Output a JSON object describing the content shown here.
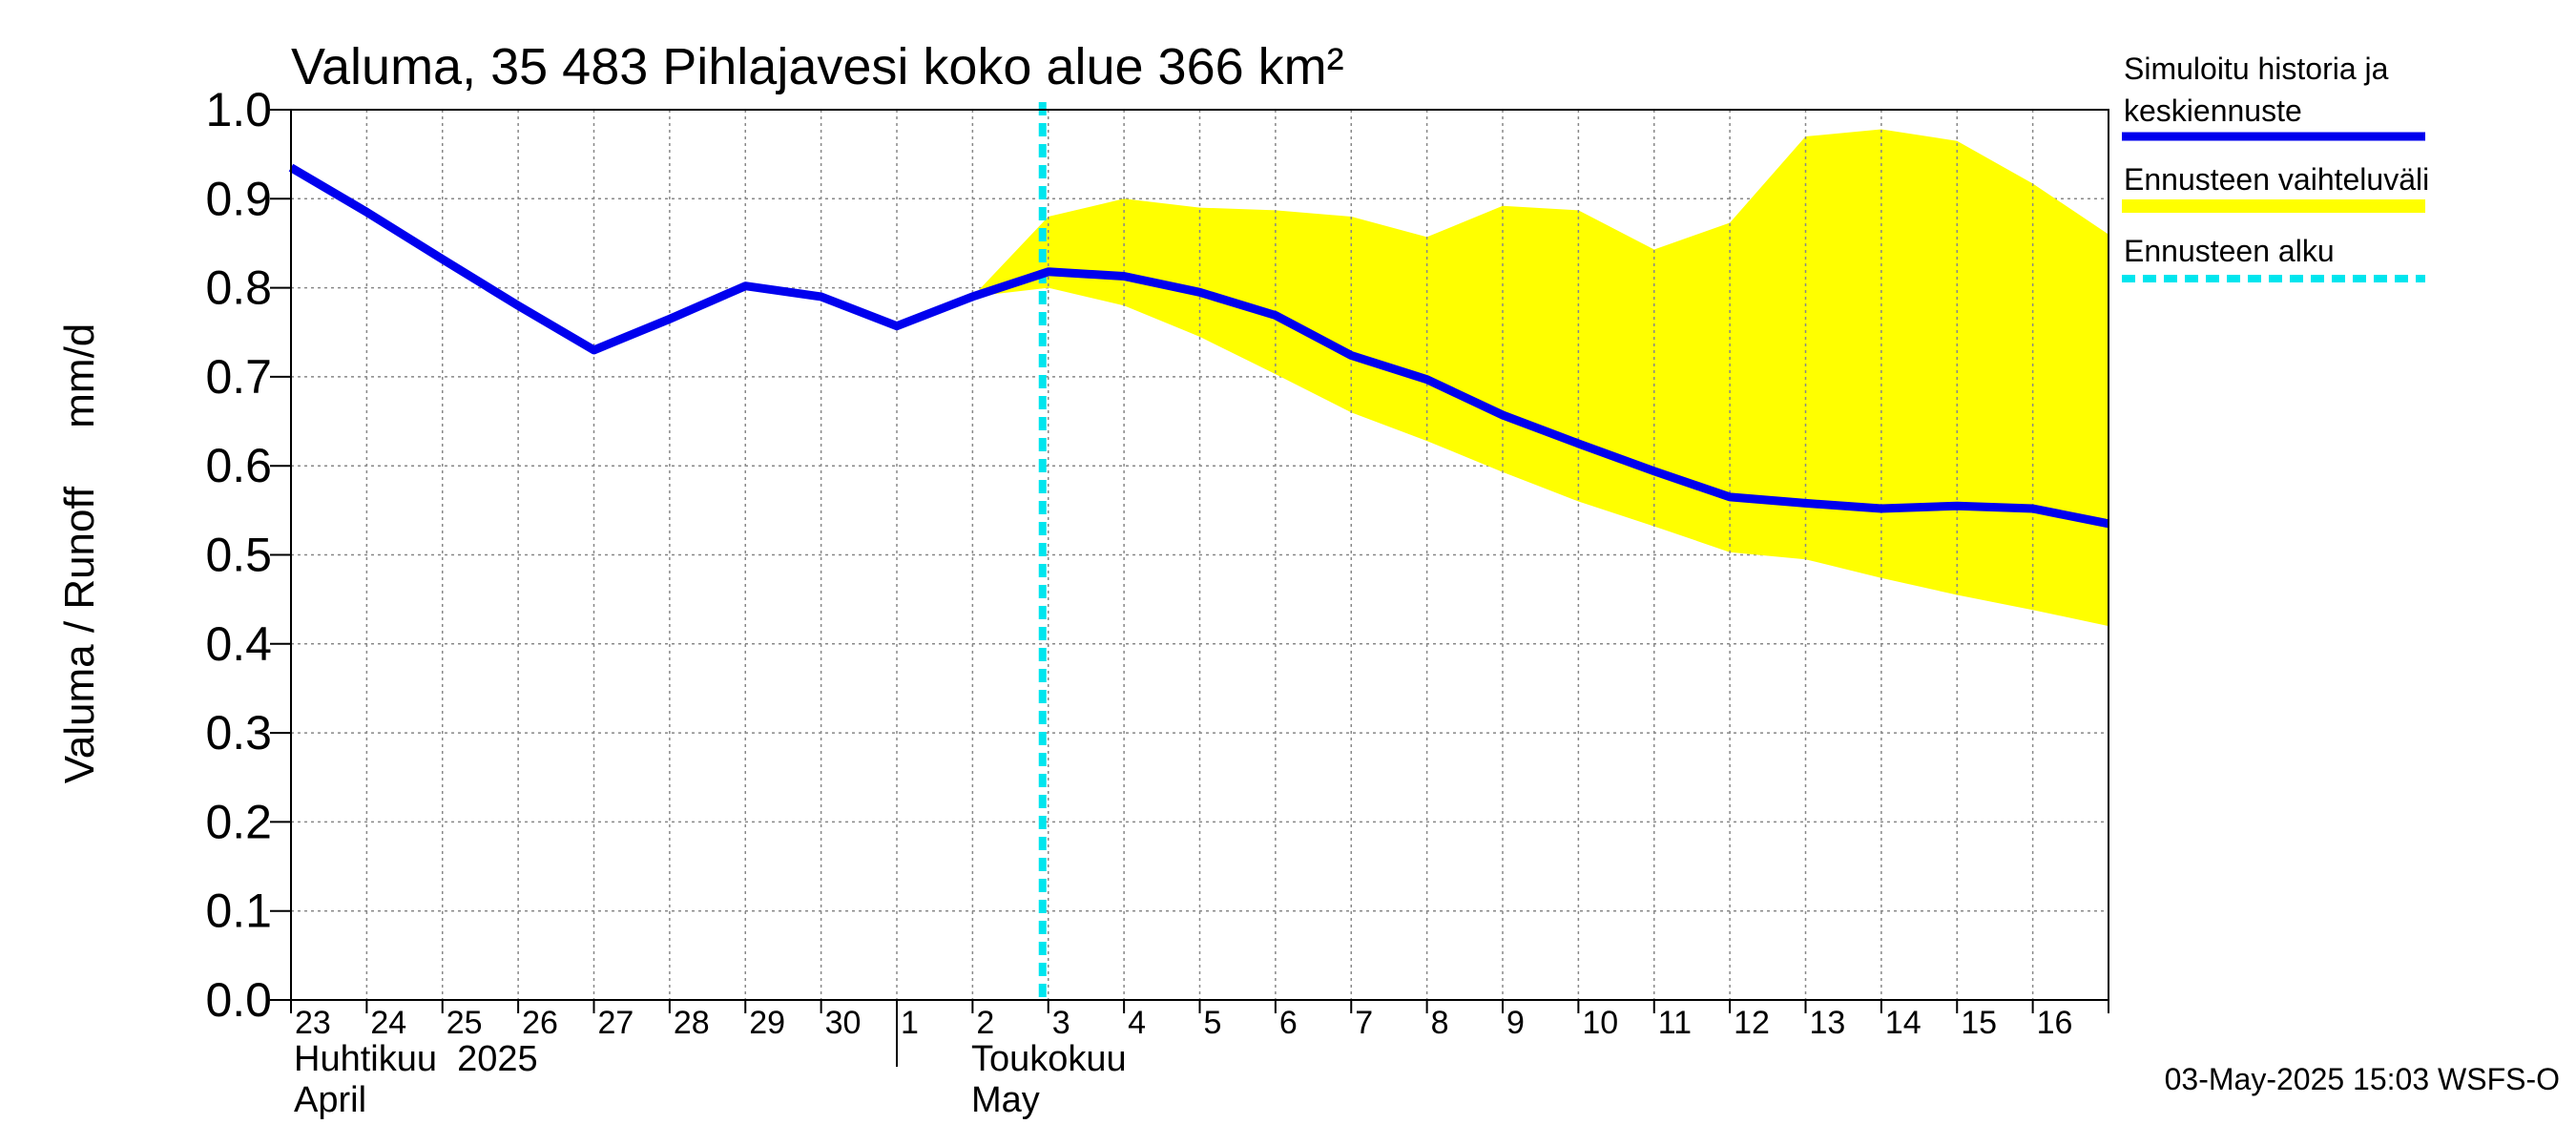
{
  "chart_data": {
    "type": "line",
    "title": "Valuma, 35 483 Pihlajavesi koko alue 366 km²",
    "ylabel": "Valuma / Runoff     mm/d",
    "ylim": [
      0.0,
      1.0
    ],
    "yticks": [
      "0.0",
      "0.1",
      "0.2",
      "0.3",
      "0.4",
      "0.5",
      "0.6",
      "0.7",
      "0.8",
      "0.9",
      "1.0"
    ],
    "x_tick_labels": [
      "23",
      "24",
      "25",
      "26",
      "27",
      "28",
      "29",
      "30",
      "1",
      "2",
      "3",
      "4",
      "5",
      "6",
      "7",
      "8",
      "9",
      "10",
      "11",
      "12",
      "13",
      "14",
      "15",
      "16"
    ],
    "month_labels": {
      "april_fi": "Huhtikuu  2025",
      "april_en": "April",
      "may_fi": "Toukokuu",
      "may_en": "May"
    },
    "grid": true,
    "forecast_start": "2025-05-03",
    "series": [
      {
        "name": "Simuloitu historia ja keskiennuste",
        "color": "#0000ee",
        "dates": [
          "2025-04-23",
          "2025-04-24",
          "2025-04-25",
          "2025-04-26",
          "2025-04-27",
          "2025-04-28",
          "2025-04-29",
          "2025-04-30",
          "2025-05-01",
          "2025-05-02",
          "2025-05-03",
          "2025-05-04",
          "2025-05-05",
          "2025-05-06",
          "2025-05-07",
          "2025-05-08",
          "2025-05-09",
          "2025-05-10",
          "2025-05-11",
          "2025-05-12",
          "2025-05-13",
          "2025-05-14",
          "2025-05-15",
          "2025-05-16",
          "2025-05-17"
        ],
        "values": [
          0.935,
          0.885,
          0.832,
          0.78,
          0.73,
          0.765,
          0.802,
          0.79,
          0.757,
          0.79,
          0.818,
          0.813,
          0.795,
          0.769,
          0.724,
          0.697,
          0.657,
          0.625,
          0.594,
          0.565,
          0.558,
          0.552,
          0.555,
          0.552,
          0.535
        ]
      },
      {
        "name": "Ennusteen vaihteluväli",
        "color": "#ffff00",
        "dates": [
          "2025-05-02",
          "2025-05-03",
          "2025-05-04",
          "2025-05-05",
          "2025-05-06",
          "2025-05-07",
          "2025-05-08",
          "2025-05-09",
          "2025-05-10",
          "2025-05-11",
          "2025-05-12",
          "2025-05-13",
          "2025-05-14",
          "2025-05-15",
          "2025-05-16",
          "2025-05-17"
        ],
        "upper": [
          0.79,
          0.88,
          0.9,
          0.89,
          0.887,
          0.88,
          0.857,
          0.892,
          0.887,
          0.843,
          0.873,
          0.97,
          0.978,
          0.965,
          0.917,
          0.86
        ],
        "lower": [
          0.79,
          0.8,
          0.78,
          0.745,
          0.703,
          0.66,
          0.628,
          0.593,
          0.56,
          0.532,
          0.503,
          0.495,
          0.474,
          0.455,
          0.438,
          0.42
        ]
      },
      {
        "name": "Ennusteen alku",
        "color": "#00e5ee"
      }
    ]
  },
  "legend": {
    "history_line1": "Simuloitu historia ja",
    "history_line2": "keskiennuste",
    "range": "Ennusteen vaihteluväli",
    "start": "Ennusteen alku"
  },
  "footer": "03-May-2025 15:03 WSFS-O"
}
